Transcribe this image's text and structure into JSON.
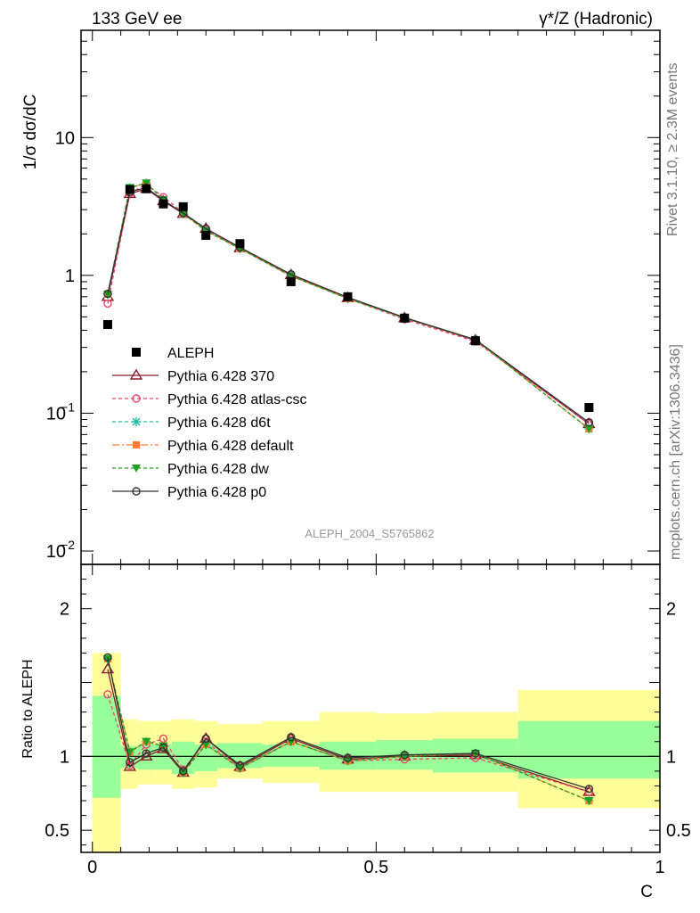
{
  "chart_data": {
    "type": "line",
    "title_left": "133 GeV ee",
    "title_right": "γ*/Z (Hadronic)",
    "ylabel": "1/σ  dσ/dC",
    "xlabel": "C",
    "ratio_ylabel": "Ratio to ALEPH",
    "watermark": "ALEPH_2004_S5765862",
    "side_text_top": "Rivet 3.1.10, ≥ 2.3M events",
    "side_text_bottom": "mcplots.cern.ch [arXiv:1306.3436]",
    "y_scale": "log",
    "ylim": [
      0.008,
      60
    ],
    "xlim": [
      -0.02,
      1.0
    ],
    "ratio_ylim": [
      0.35,
      2.3
    ],
    "x_ticks": [
      {
        "v": 0,
        "label": "0"
      },
      {
        "v": 0.5,
        "label": "0.5"
      },
      {
        "v": 1,
        "label": "1"
      }
    ],
    "y_ticks": [
      {
        "v": 0.01,
        "base": "10",
        "exp": "−2"
      },
      {
        "v": 0.1,
        "base": "10",
        "exp": "−1"
      },
      {
        "v": 1,
        "base": "1",
        "exp": ""
      },
      {
        "v": 10,
        "base": "10",
        "exp": ""
      }
    ],
    "ratio_ticks": [
      {
        "v": 0.5,
        "label": "0.5"
      },
      {
        "v": 1,
        "label": "1"
      },
      {
        "v": 2,
        "label": "2"
      }
    ],
    "legend_position": "lower-left",
    "bins": [
      0.0,
      0.05,
      0.08,
      0.11,
      0.14,
      0.18,
      0.22,
      0.3,
      0.4,
      0.5,
      0.6,
      0.75,
      1.0
    ],
    "x": [
      0.027,
      0.066,
      0.095,
      0.125,
      0.16,
      0.2,
      0.26,
      0.35,
      0.45,
      0.55,
      0.675,
      0.875
    ],
    "data": {
      "name": "ALEPH",
      "color": "#000000",
      "values": [
        0.44,
        4.2,
        4.25,
        3.3,
        3.15,
        1.95,
        1.7,
        0.9,
        0.7,
        0.49,
        0.335,
        0.11
      ],
      "band_inner": [
        [
          0.72,
          1.41
        ],
        [
          0.92,
          1.07
        ],
        [
          0.91,
          1.08
        ],
        [
          0.91,
          1.08
        ],
        [
          0.88,
          1.1
        ],
        [
          0.9,
          1.08
        ],
        [
          0.92,
          1.09
        ],
        [
          0.93,
          1.08
        ],
        [
          0.91,
          1.1
        ],
        [
          0.91,
          1.11
        ],
        [
          0.89,
          1.12
        ],
        [
          0.85,
          1.24
        ]
      ],
      "band_outer": [
        [
          0.35,
          1.7
        ],
        [
          0.78,
          1.25
        ],
        [
          0.81,
          1.24
        ],
        [
          0.81,
          1.24
        ],
        [
          0.78,
          1.25
        ],
        [
          0.79,
          1.24
        ],
        [
          0.85,
          1.22
        ],
        [
          0.82,
          1.24
        ],
        [
          0.76,
          1.3
        ],
        [
          0.76,
          1.29
        ],
        [
          0.76,
          1.3
        ],
        [
          0.65,
          1.45
        ]
      ]
    },
    "series": [
      {
        "name": "Pythia 6.428 370",
        "color": "#8b1a2b",
        "dash": "",
        "marker": "triangle-open",
        "ratio": [
          1.59,
          0.93,
          1.0,
          1.05,
          0.89,
          1.12,
          0.93,
          1.12,
          0.98,
          1.0,
          1.01,
          0.76
        ]
      },
      {
        "name": "Pythia 6.428 atlas-csc",
        "color": "#e8456a",
        "dash": "4,3",
        "marker": "circle-open",
        "ratio": [
          1.42,
          0.94,
          1.08,
          1.12,
          0.91,
          1.1,
          0.92,
          1.1,
          0.97,
          0.98,
          0.99,
          0.76
        ]
      },
      {
        "name": "Pythia 6.428 d6t",
        "color": "#20c0a0",
        "dash": "4,3",
        "marker": "star",
        "ratio": [
          1.66,
          1.03,
          1.1,
          1.07,
          0.89,
          1.08,
          0.92,
          1.1,
          0.97,
          1.0,
          1.02,
          0.7
        ]
      },
      {
        "name": "Pythia 6.428 default",
        "color": "#ff8030",
        "dash": "8,3,2,3",
        "marker": "square",
        "ratio": [
          1.66,
          1.03,
          1.1,
          1.07,
          0.89,
          1.08,
          0.92,
          1.1,
          0.97,
          1.0,
          1.02,
          0.7
        ]
      },
      {
        "name": "Pythia 6.428 dw",
        "color": "#20a020",
        "dash": "4,3",
        "marker": "triangle-down",
        "ratio": [
          1.66,
          1.03,
          1.1,
          1.07,
          0.89,
          1.08,
          0.92,
          1.1,
          0.97,
          1.0,
          1.02,
          0.7
        ]
      },
      {
        "name": "Pythia 6.428 p0",
        "color": "#333333",
        "dash": "",
        "marker": "circle-open",
        "ratio": [
          1.67,
          0.96,
          1.02,
          1.06,
          0.9,
          1.12,
          0.94,
          1.13,
          0.99,
          1.01,
          1.02,
          0.78
        ]
      }
    ]
  }
}
